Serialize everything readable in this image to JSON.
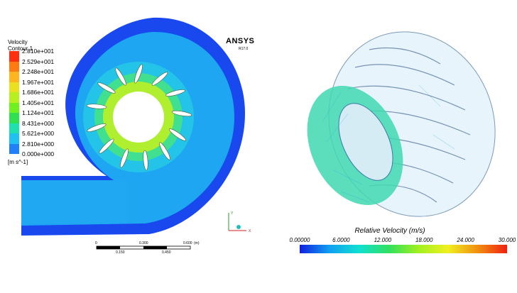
{
  "left": {
    "legend_title_1": "Velocity",
    "legend_title_2": "Contour 1",
    "legend_unit": "[m s^-1]",
    "legend_values": [
      "2.810e+001",
      "2.529e+001",
      "2.248e+001",
      "1.967e+001",
      "1.686e+001",
      "1.405e+001",
      "1.124e+001",
      "8.431e+000",
      "5.621e+000",
      "2.810e+000",
      "0.000e+000"
    ],
    "legend_colors": [
      "#ff3010",
      "#ff7a10",
      "#ffb520",
      "#e8e020",
      "#b8ef20",
      "#70f020",
      "#30e050",
      "#20e0b0",
      "#20c0f0",
      "#2080f8",
      "#1a3cf0"
    ],
    "brand": "ANSYS",
    "release": "R17.0",
    "scale_top_labels": [
      "0",
      "0.300",
      "0.600"
    ],
    "scale_unit": "(m)",
    "scale_bottom_labels": [
      "0.150",
      "0.450"
    ]
  },
  "right": {
    "colorbar_title": "Relative Velocity (m/s)",
    "colorbar_ticks": [
      "0.00000",
      "6.0000",
      "12.000",
      "18.000",
      "24.000",
      "30.000"
    ],
    "colorbar_colors": [
      "#1020e0",
      "#10a0f0",
      "#10e0d0",
      "#30e060",
      "#a0f020",
      "#f0f020",
      "#f09010",
      "#f02010"
    ]
  }
}
